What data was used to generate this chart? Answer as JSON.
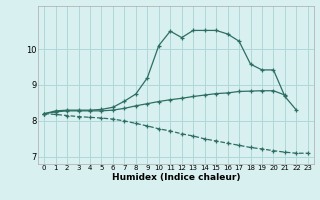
{
  "xlabel": "Humidex (Indice chaleur)",
  "x_values": [
    0,
    1,
    2,
    3,
    4,
    5,
    6,
    7,
    8,
    9,
    10,
    11,
    12,
    13,
    14,
    15,
    16,
    17,
    18,
    19,
    20,
    21,
    22,
    23
  ],
  "line1_y": [
    8.2,
    8.28,
    8.3,
    8.3,
    8.3,
    8.32,
    8.38,
    8.55,
    8.75,
    9.2,
    10.1,
    10.5,
    10.32,
    10.52,
    10.52,
    10.52,
    10.42,
    10.22,
    9.58,
    9.42,
    9.42,
    8.68,
    8.3,
    null
  ],
  "line2_y": [
    8.2,
    8.25,
    8.28,
    8.28,
    8.28,
    8.28,
    8.3,
    8.35,
    8.42,
    8.48,
    8.54,
    8.59,
    8.63,
    8.68,
    8.72,
    8.76,
    8.78,
    8.82,
    8.83,
    8.84,
    8.84,
    8.72,
    null,
    null
  ],
  "line3_y": [
    8.2,
    8.18,
    8.15,
    8.12,
    8.1,
    8.08,
    8.05,
    8.0,
    7.93,
    7.86,
    7.78,
    7.72,
    7.64,
    7.58,
    7.5,
    7.44,
    7.38,
    7.32,
    7.26,
    7.22,
    7.17,
    7.13,
    7.1,
    7.1
  ],
  "line_color": "#2d6e63",
  "bg_color": "#d8f0f0",
  "grid_color": "#b0d8d8",
  "ylim": [
    6.8,
    11.2
  ],
  "yticks": [
    7,
    8,
    9,
    10
  ],
  "xlim": [
    -0.5,
    23.5
  ]
}
